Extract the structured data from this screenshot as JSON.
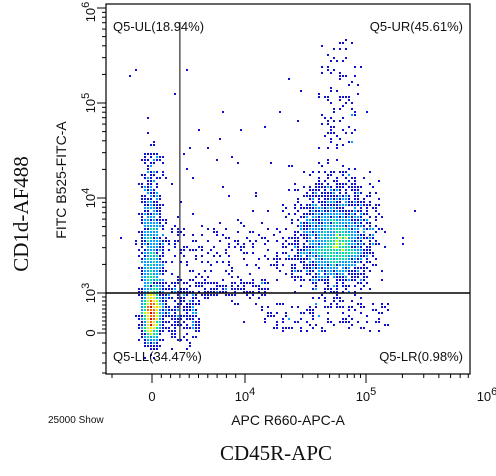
{
  "chart_data": {
    "type": "scatter",
    "subtype": "flow-cytometry density dot plot",
    "x_axis": {
      "label": "APC R660-APC-A",
      "outer_label": "CD45R-APC",
      "scale": "biexponential",
      "ticks": [
        {
          "value": 0,
          "label": "0",
          "exp": ""
        },
        {
          "value": 10000,
          "label": "10",
          "exp": "4"
        },
        {
          "value": 100000,
          "label": "10",
          "exp": "5"
        },
        {
          "value": 1000000,
          "label": "10",
          "exp": "6"
        }
      ]
    },
    "y_axis": {
      "label": "FITC B525-FITC-A",
      "outer_label": "CD1d-AF488",
      "scale": "biexponential",
      "ticks": [
        {
          "value": 0,
          "label": "0",
          "exp": ""
        },
        {
          "value": 1000,
          "label": "10",
          "exp": "3"
        },
        {
          "value": 10000,
          "label": "10",
          "exp": "4"
        },
        {
          "value": 100000,
          "label": "10",
          "exp": "5"
        },
        {
          "value": 1000000,
          "label": "10",
          "exp": "6"
        }
      ]
    },
    "footnote": "25000 Show",
    "quadrants": [
      {
        "name": "Q5-UL",
        "label": "Q5-UL(18.94%)",
        "percent": 18.94,
        "position": "top-left"
      },
      {
        "name": "Q5-UR",
        "label": "Q5-UR(45.61%)",
        "percent": 45.61,
        "position": "top-right"
      },
      {
        "name": "Q5-LL",
        "label": "Q5-LL(34.47%)",
        "percent": 34.47,
        "position": "bottom-left"
      },
      {
        "name": "Q5-LR",
        "label": "Q5-LR(0.98%)",
        "percent": 0.98,
        "position": "bottom-right"
      }
    ],
    "gates": {
      "x_threshold": 3000,
      "y_threshold": 1000
    },
    "populations": [
      {
        "center_x": 0,
        "center_y": 500,
        "description": "dense negative population near origin"
      },
      {
        "center_x": 60000,
        "center_y": 3000,
        "description": "CD45R+ population, upper right"
      }
    ],
    "colormap": [
      "#1010d0",
      "#00a0ff",
      "#00e0a0",
      "#c0ff00",
      "#ffe000",
      "#ff6000",
      "#e00000"
    ]
  }
}
